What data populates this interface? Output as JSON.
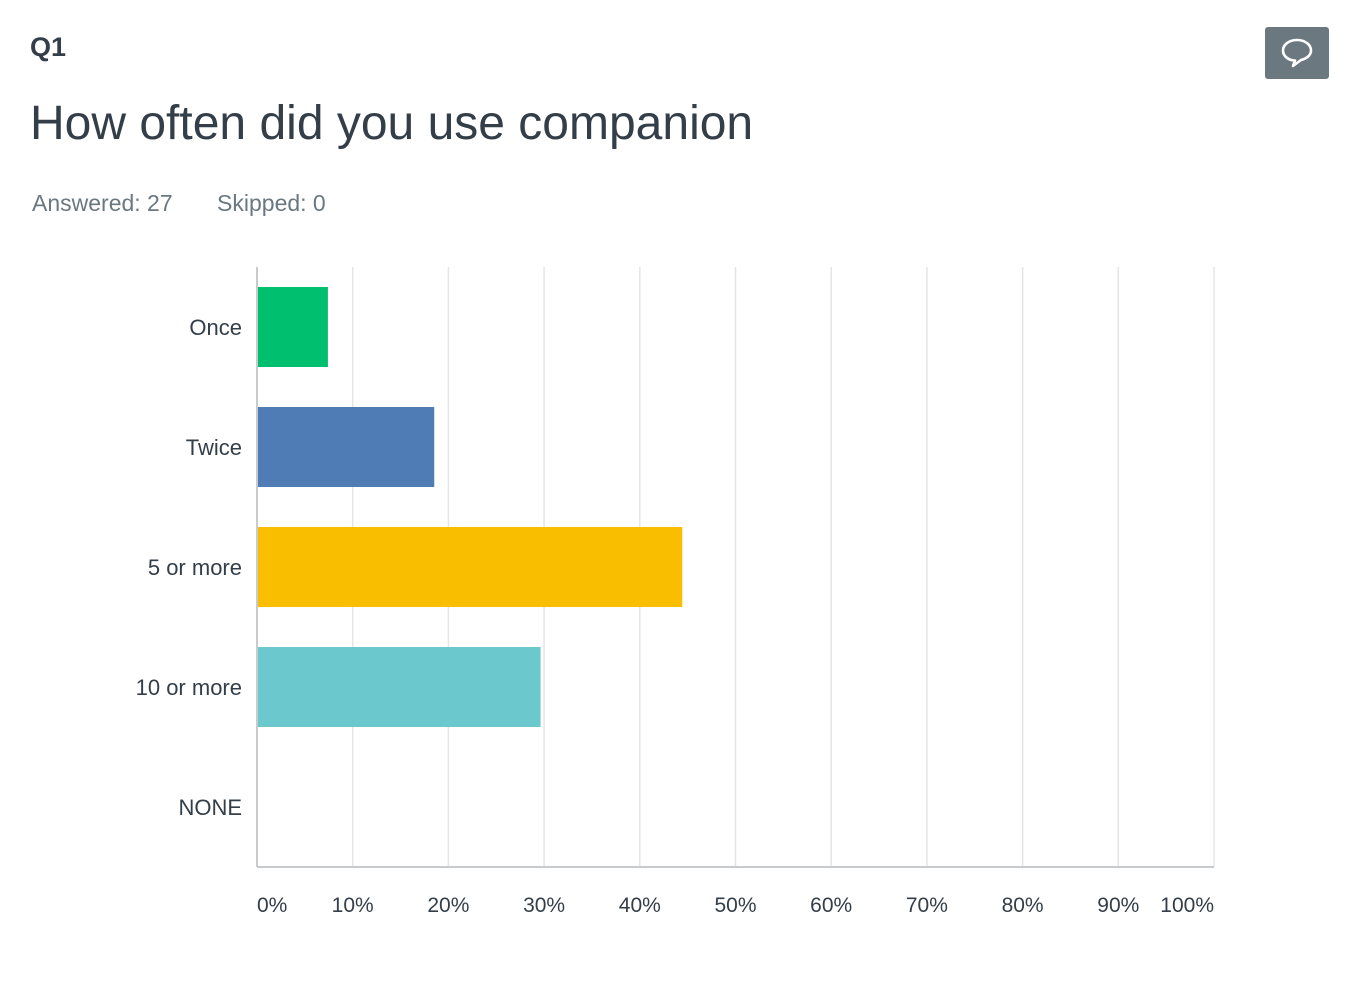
{
  "question": {
    "number": "Q1",
    "title": "How often did you use companion",
    "answered_label": "Answered: 27",
    "skipped_label": "Skipped: 0",
    "comment_icon": "speech-bubble-icon"
  },
  "colors": {
    "grid": "#e3e5e7",
    "axis": "#c7cbcd",
    "button_bg": "#6b787f"
  },
  "chart_data": {
    "type": "bar",
    "orientation": "horizontal",
    "title": "",
    "xlabel": "",
    "ylabel": "",
    "xlim": [
      0,
      100
    ],
    "grid": true,
    "categories": [
      "Once",
      "Twice",
      "5 or more",
      "10 or more",
      "NONE"
    ],
    "values": [
      7.41,
      18.52,
      44.44,
      29.63,
      0
    ],
    "colors": [
      "#00bf6f",
      "#507cb6",
      "#f9be00",
      "#6bc8cd",
      "#ff8b4f"
    ],
    "ticks": [
      0,
      10,
      20,
      30,
      40,
      50,
      60,
      70,
      80,
      90,
      100
    ],
    "tick_labels": [
      "0%",
      "10%",
      "20%",
      "30%",
      "40%",
      "50%",
      "60%",
      "70%",
      "80%",
      "90%",
      "100%"
    ]
  }
}
